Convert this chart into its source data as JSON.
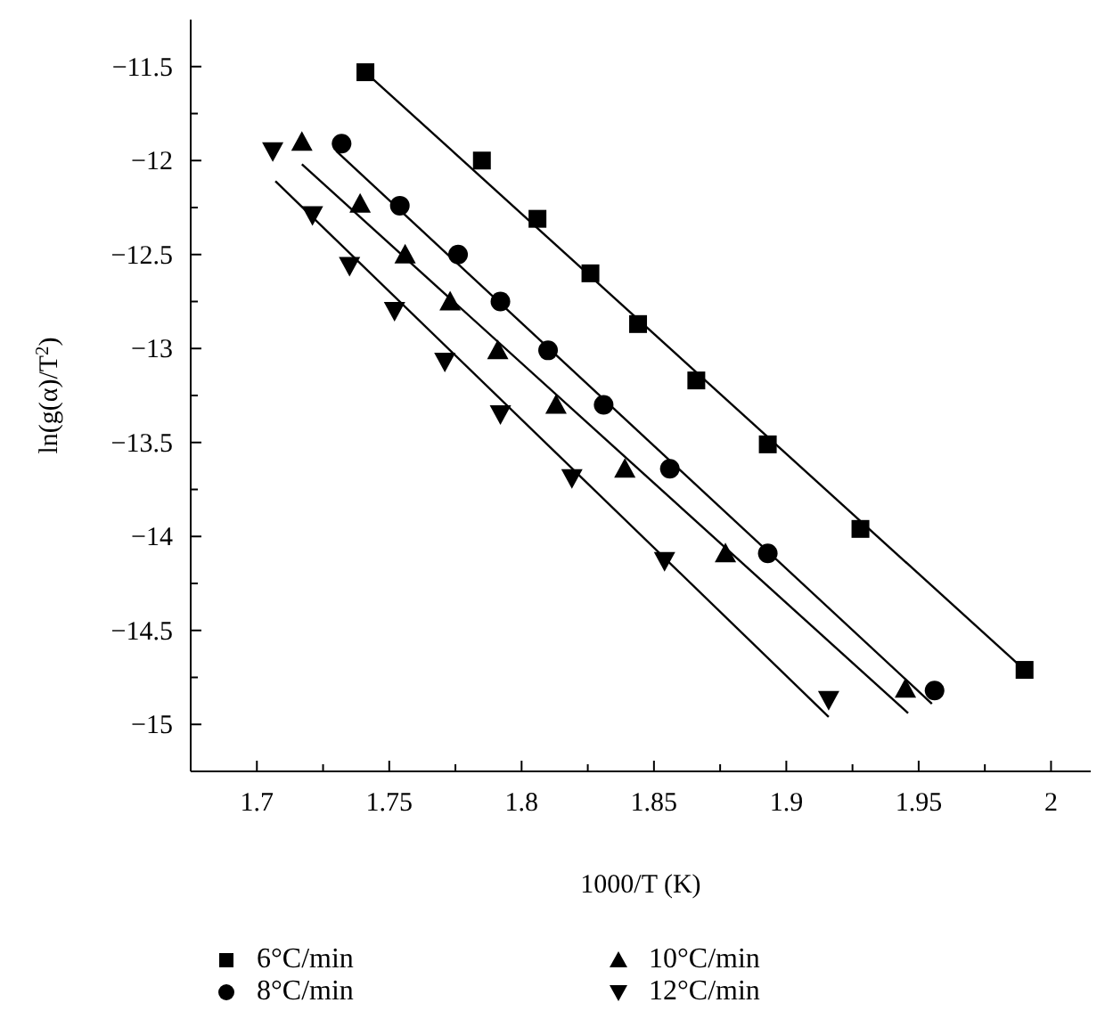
{
  "chart_data": {
    "type": "scatter",
    "xlabel": "1000/T (K)",
    "ylabel": "ln(g(α)/T$^{2}$)",
    "xlim": [
      1.675,
      2.015
    ],
    "ylim": [
      -15.25,
      -11.25
    ],
    "xticks": [
      {
        "value": 1.675,
        "label": null
      },
      {
        "value": 1.7,
        "label": "1.7"
      },
      {
        "value": 1.725,
        "label": null
      },
      {
        "value": 1.75,
        "label": "1.75"
      },
      {
        "value": 1.775,
        "label": null
      },
      {
        "value": 1.8,
        "label": "1.8"
      },
      {
        "value": 1.825,
        "label": null
      },
      {
        "value": 1.85,
        "label": "1.85"
      },
      {
        "value": 1.875,
        "label": null
      },
      {
        "value": 1.9,
        "label": "1.9"
      },
      {
        "value": 1.925,
        "label": null
      },
      {
        "value": 1.95,
        "label": "1.95"
      },
      {
        "value": 1.975,
        "label": null
      },
      {
        "value": 2,
        "label": "2"
      }
    ],
    "yticks": [
      {
        "value": -11.5,
        "label": "−11.5"
      },
      {
        "value": -11.75,
        "label": null
      },
      {
        "value": -12,
        "label": "−12"
      },
      {
        "value": -12.25,
        "label": null
      },
      {
        "value": -12.5,
        "label": "−12.5"
      },
      {
        "value": -12.75,
        "label": null
      },
      {
        "value": -13,
        "label": "−13"
      },
      {
        "value": -13.25,
        "label": null
      },
      {
        "value": -13.5,
        "label": "−13.5"
      },
      {
        "value": -13.75,
        "label": null
      },
      {
        "value": -14,
        "label": "−14"
      },
      {
        "value": -14.25,
        "label": null
      },
      {
        "value": -14.5,
        "label": "−14.5"
      },
      {
        "value": -14.75,
        "label": null
      },
      {
        "value": -15,
        "label": "−15"
      },
      {
        "value": -15.25,
        "label": null
      }
    ],
    "grid": false,
    "legend": "bottom",
    "series": [
      {
        "name": "6°C/min",
        "color": "#000000",
        "marker": "square",
        "x": [
          1.741,
          1.785,
          1.806,
          1.826,
          1.844,
          1.866,
          1.893,
          1.928,
          1.99
        ],
        "values": [
          -11.53,
          -12.0,
          -12.31,
          -12.6,
          -12.87,
          -13.17,
          -13.51,
          -13.96,
          -14.71
        ]
      },
      {
        "name": "8°C/min",
        "color": "#000000",
        "marker": "circle",
        "x": [
          1.732,
          1.754,
          1.776,
          1.792,
          1.81,
          1.831,
          1.856,
          1.893,
          1.956
        ],
        "values": [
          -11.91,
          -12.24,
          -12.5,
          -12.75,
          -13.01,
          -13.3,
          -13.64,
          -14.09,
          -14.82
        ]
      },
      {
        "name": "10°C/min",
        "color": "#000000",
        "marker": "triangle",
        "x": [
          1.717,
          1.739,
          1.756,
          1.773,
          1.791,
          1.813,
          1.839,
          1.877,
          1.945
        ],
        "values": [
          -11.9,
          -12.23,
          -12.5,
          -12.75,
          -13.01,
          -13.3,
          -13.64,
          -14.09,
          -14.81
        ]
      },
      {
        "name": "12°C/min",
        "color": "#000000",
        "marker": "triangle-down",
        "x": [
          1.706,
          1.721,
          1.735,
          1.752,
          1.771,
          1.792,
          1.819,
          1.854,
          1.916
        ],
        "values": [
          -11.95,
          -12.29,
          -12.56,
          -12.8,
          -13.07,
          -13.35,
          -13.69,
          -14.13,
          -14.87
        ]
      },
      {
        "type": "line",
        "color": "#000000",
        "marker": "none",
        "x": [
          1.741,
          1.99
        ],
        "values": [
          -11.53,
          -14.71
        ]
      },
      {
        "type": "line",
        "color": "#000000",
        "marker": "none",
        "x": [
          1.73,
          1.955
        ],
        "values": [
          -11.95,
          -14.89
        ]
      },
      {
        "type": "line",
        "color": "#000000",
        "marker": "none",
        "x": [
          1.717,
          1.946
        ],
        "values": [
          -12.02,
          -14.94
        ]
      },
      {
        "type": "line",
        "color": "#000000",
        "marker": "none",
        "x": [
          1.707,
          1.916
        ],
        "values": [
          -12.11,
          -14.96
        ]
      }
    ]
  }
}
